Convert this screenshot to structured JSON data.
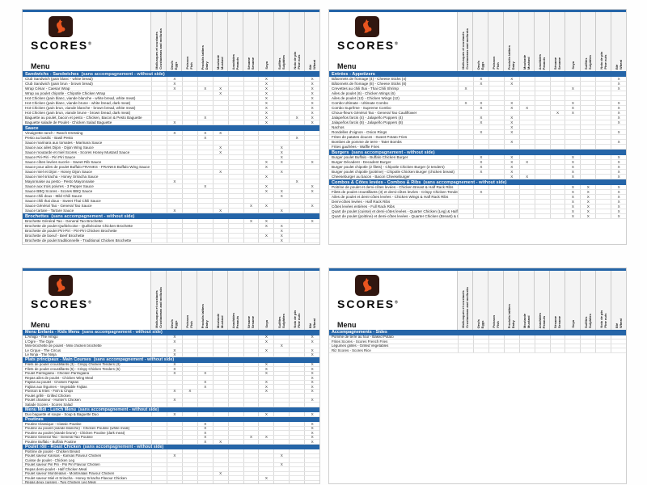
{
  "brand": {
    "name": "SCORES",
    "reg": "®",
    "menu_label": "Menu",
    "mark": "X"
  },
  "colors": {
    "section_bar": "#2565a8",
    "topline": "#2565a8",
    "logo_bg": "#311710",
    "rooster": "#e8541f"
  },
  "columns": [
    {
      "fr": "Mollusques et crustacés",
      "en": "Crustaceans and mollusks"
    },
    {
      "fr": "Oeufs",
      "en": "Eggs"
    },
    {
      "fr": "Poisson",
      "en": "Fish"
    },
    {
      "fr": "Produits laitiers",
      "en": "Dairy"
    },
    {
      "fr": "Moutarde",
      "en": "Mustard"
    },
    {
      "fr": "Arachides",
      "en": "Peanuts"
    },
    {
      "fr": "Sésame",
      "en": "Sesame"
    },
    {
      "fr": "Soya",
      "en": ""
    },
    {
      "fr": "Sulfites",
      "en": "Sulphites"
    },
    {
      "fr": "Noix de pin",
      "en": "Pine nuts"
    },
    {
      "fr": "Blé",
      "en": "Wheat"
    }
  ],
  "pages": [
    {
      "id": "top-left",
      "sections": [
        {
          "title": "Sandwichs - Sandwiches",
          "note": "(sans accompagnement - without side)",
          "rows": [
            {
              "name": "Club Sandwich (pain blanc - white bread)",
              "marks": [
                1,
                7,
                10
              ]
            },
            {
              "name": "Club Sandwich (pain brun - brown bread)",
              "marks": [
                1,
                7,
                10
              ]
            },
            {
              "name": "Wrap César - Caesar Wrap",
              "marks": [
                1,
                3,
                4,
                7,
                10
              ]
            },
            {
              "name": "Wrap au poulet chipotle - Chipotle Chicken Wrap",
              "marks": [
                4,
                7,
                10
              ]
            },
            {
              "name": "Hot Chicken (pain blanc, viande blanche - white bread, white meat)",
              "marks": [
                7,
                10
              ]
            },
            {
              "name": "Hot Chicken (pain blanc, viande brune - white bread, dark meat)",
              "marks": [
                7,
                10
              ]
            },
            {
              "name": "Hot Chicken (pain brun, viande blanche - brown bread, white meat)",
              "marks": [
                7,
                10
              ]
            },
            {
              "name": "Hot Chicken (pain brun, viande brune - brown bread, dark meat)",
              "marks": [
                7,
                10
              ]
            },
            {
              "name": "Baguette au poulet, bacon et pesto - Chicken, Bacon & Pesto Baguette",
              "marks": [
                3,
                7,
                9,
                10
              ]
            },
            {
              "name": "Baguette salade de Poulet - Chicken Salad Baguette",
              "marks": [
                1,
                7,
                10
              ]
            }
          ]
        },
        {
          "title": "Sauce",
          "note": "",
          "rows": [
            {
              "name": "Vinaigrette ranch - Ranch Dressing",
              "marks": [
                1,
                3,
                4
              ]
            },
            {
              "name": "Pesto au basilic - Basil Pesto",
              "marks": [
                3,
                9
              ]
            },
            {
              "name": "Sauce marinara aux tomates - Marinara Sauce",
              "marks": []
            },
            {
              "name": "Sauce aux ailes Dijon - Dijon Wing Sauce",
              "marks": [
                4,
                8
              ]
            },
            {
              "name": "Sauce moutarde et miel Scores - Scores Honey Mustard Sauce",
              "marks": [
                4,
                8
              ]
            },
            {
              "name": "Sauce Piri-Piri - Piri Piri Sauce",
              "marks": [
                8
              ]
            },
            {
              "name": "Sauce côtes levées sucrée - Sweet Rib Sauce",
              "marks": [
                7,
                8,
                10
              ]
            },
            {
              "name": "Sauce pour ailes de poulet Buffalo FRANKS - FRANKS Buffalo Wing Sauce",
              "marks": [
                7
              ]
            },
            {
              "name": "Sauce miel et Dijon - Honey Dijon Sauce",
              "marks": [
                4,
                8
              ]
            },
            {
              "name": "Sauce miel sriracha - Honey Sriracha Sauce",
              "marks": [
                7
              ]
            },
            {
              "name": "Mayonnaise au pesto - Pesto Mayonnaise",
              "marks": [
                1,
                9
              ]
            },
            {
              "name": "Sauce aux trois poivres - 3 Pepper Sauce",
              "marks": [
                3,
                7,
                10
              ]
            },
            {
              "name": "Sauce BBQ Scores - Scores BBQ Sauce",
              "marks": [
                7,
                8,
                10
              ]
            },
            {
              "name": "Sauce chili doux - Mild Chili Sauce",
              "marks": [
                8
              ]
            },
            {
              "name": "Sauce chili thai doux - Sweet Thai Chili Sauce",
              "marks": []
            },
            {
              "name": "Sauce Général Tao - General Tao Sauce",
              "marks": [
                6,
                7,
                10
              ]
            },
            {
              "name": "Sauce tartare - Tartare Sauce",
              "marks": [
                1,
                4,
                8
              ]
            }
          ]
        },
        {
          "title": "Brochettes",
          "note": "(sans accompagnement - without side)",
          "rows": [
            {
              "name": "Brochette Général Tao - General Tao Brochette",
              "marks": [
                6,
                7,
                10
              ]
            },
            {
              "name": "Brochette de poulet Québécoise - Québécoise Chicken Brochette",
              "marks": [
                7,
                8
              ]
            },
            {
              "name": "Brochette de poulet Piri-Piri - Piri-Piri Chicken Brochette",
              "marks": [
                8
              ]
            },
            {
              "name": "Brochette de boeuf - Beef Brochette",
              "marks": [
                7,
                8
              ]
            },
            {
              "name": "Brochette de poulet traditionnelle - Traditional Chicken Brochette",
              "marks": [
                8
              ]
            }
          ]
        }
      ]
    },
    {
      "id": "top-right",
      "sections": [
        {
          "title": "Entrées - Appetizers",
          "note": "",
          "rows": [
            {
              "name": "Bâtonnets de fromage (4) - Cheese Sticks (4)",
              "marks": [
                1,
                3,
                10
              ]
            },
            {
              "name": "Bâtonnets de fromage (8) - Cheese Sticks (8)",
              "marks": [
                1,
                3,
                10
              ]
            },
            {
              "name": "Crevettes au chili thai - Thai Chili Shrimp",
              "marks": [
                0,
                7,
                10
              ]
            },
            {
              "name": "Ailes de poulet (6) - Chicken Wings (6)",
              "marks": []
            },
            {
              "name": "Ailes de poulet (12) - Chicken Wings (12)",
              "marks": []
            },
            {
              "name": "Combo Ultimate - Ultimate Combo",
              "marks": [
                0,
                1,
                3,
                7,
                10
              ]
            },
            {
              "name": "Combo Suprême - Supreme Combo",
              "marks": [
                1,
                3,
                4,
                7,
                10
              ]
            },
            {
              "name": "Choux-fleurs Général Tao - General Tao Cauliflower",
              "marks": [
                6,
                7,
                10
              ]
            },
            {
              "name": "Jalapeños farcis (4) - Jalapeño Poppers (4)",
              "marks": [
                1,
                3,
                10
              ]
            },
            {
              "name": "Jalapeños farcis (8) - Jalapeño Poppers (8)",
              "marks": [
                1,
                3,
                10
              ]
            },
            {
              "name": "Nachos",
              "marks": [
                3
              ]
            },
            {
              "name": "Rondelles d'oignon - Onion Rings",
              "marks": [
                1,
                3,
                10
              ]
            },
            {
              "name": "Frites de patates douces - Sweet Potato Fries",
              "marks": []
            },
            {
              "name": "Bombes de pomme de terre - Tater Bombs",
              "marks": [
                3,
                10
              ]
            },
            {
              "name": "Frites gaufrées - Waffle Fries",
              "marks": []
            }
          ]
        },
        {
          "title": "Burgers",
          "note": "(sans accompagnement - without side)",
          "rows": [
            {
              "name": "Burger poulet Buffalo - Buffalo Chicken Burger",
              "marks": [
                1,
                3,
                7,
                10
              ]
            },
            {
              "name": "Burger Décadent - Decadent Burger",
              "marks": [
                1,
                3,
                4,
                7,
                10
              ]
            },
            {
              "name": "Burger poulet chipotle (2 filets) - Chipotle Chicken Burger (2 tenders)",
              "marks": [
                1,
                3,
                7,
                10
              ]
            },
            {
              "name": "Burger poulet chipotle (poitrine) - Chipotle Chicken Burger (chicken breast)",
              "marks": [
                1,
                3,
                7,
                10
              ]
            },
            {
              "name": "Cheeseburger au bacon - Bacon Cheeseburger",
              "marks": [
                3,
                4,
                7,
                10
              ]
            }
          ]
        },
        {
          "title": "Combos & Côtes levées - Combos & Ribs",
          "note": "(sans accompagnement - without side)",
          "rows": [
            {
              "name": "Poitrine de poulet et demi-côtes levées - Chicken Breast & Half Rack Ribs",
              "marks": [
                7,
                8,
                10
              ]
            },
            {
              "name": "Filets de poulet croustillants (3) et demi-côtes levées - Crispy Chicken Tenders (3) & Half Rack Ribs",
              "marks": [
                1,
                7,
                8,
                10
              ]
            },
            {
              "name": "Ailes de poulet et demi-côtes levées - Chicken Wings & Half Rack Ribs",
              "marks": [
                7,
                8,
                10
              ]
            },
            {
              "name": "Demi-côtes levées - Half Rack Ribs",
              "marks": [
                7,
                8,
                10
              ]
            },
            {
              "name": "Côtes levées entières - Full Rack Ribs",
              "marks": [
                7,
                8,
                10
              ]
            },
            {
              "name": "Quart de poulet (cuisse) et demi-côtes levées - Quarter Chicken (Leg) & Half Rack Ribs",
              "marks": [
                7,
                8,
                10
              ]
            },
            {
              "name": "Quart de poulet (poitrine) et demi-côtes levées - Quarter Chicken (Breast) & Half Rack Ribs",
              "marks": [
                7,
                8,
                10
              ]
            }
          ]
        }
      ]
    },
    {
      "id": "bottom-left",
      "sections": [
        {
          "title": "Menu Enfants - Kids Menu",
          "note": "(sans accompagnement - without side)",
          "rows": [
            {
              "name": "L'Amigo - The Amigo",
              "marks": [
                1,
                7,
                10
              ]
            },
            {
              "name": "L'Ogre - The Ogre",
              "marks": [
                1,
                7,
                10
              ]
            },
            {
              "name": "Mini-brochette de poulet - Mini chicken brochette",
              "marks": [
                8
              ]
            },
            {
              "name": "Le Cirque - The Circus",
              "marks": [
                1,
                7,
                10
              ]
            },
            {
              "name": "Le Ninja - The Ninja",
              "marks": [
                1,
                10
              ]
            }
          ]
        },
        {
          "title": "Plats principaux - Main Courses",
          "note": "(sans accompagnement - without side)",
          "rows": [
            {
              "name": "Filets de poulet croustillants (3) - Crispy Chicken Tenders (3)",
              "marks": [
                1,
                7,
                10
              ]
            },
            {
              "name": "Filets de poulet croustillants (5) - Crispy Chicken Tenders (5)",
              "marks": [
                1,
                7,
                10
              ]
            },
            {
              "name": "Poulet Parmigiana - Chicken Parmigiana",
              "marks": [
                1,
                3,
                7,
                10
              ]
            },
            {
              "name": "Repas ailes de poulet - Chicken Wing Meal",
              "marks": [
                10
              ]
            },
            {
              "name": "Fajitas au poulet - Chicken Fajitas",
              "marks": [
                3,
                7,
                10
              ]
            },
            {
              "name": "Fajitas aux légumes - Vegetable Fajitas",
              "marks": [
                3,
                7,
                10
              ]
            },
            {
              "name": "Poisson & frites - Fish & Chips",
              "marks": [
                1,
                2,
                7,
                10
              ]
            },
            {
              "name": "Poulet grillé - Grilled Chicken",
              "marks": []
            },
            {
              "name": "Poulet chasseur - Hunter's Chicken",
              "marks": [
                1,
                10
              ]
            },
            {
              "name": "Salade Scores - Scores Salad",
              "marks": []
            }
          ]
        },
        {
          "title": "Menu Midi - Lunch Menu",
          "note": "(sans accompagnement - without side)",
          "rows": [
            {
              "name": "Duo baguette et soupe - Soup & Baguette Duo",
              "marks": [
                1,
                7,
                10
              ]
            }
          ]
        },
        {
          "title": "Poutines",
          "note": "",
          "rows": [
            {
              "name": "Poutine Classique - Classic Poutine",
              "marks": [
                3,
                10
              ]
            },
            {
              "name": "Poutine au poulet (viande blanche) - Chicken Poutine (white meat)",
              "marks": [
                3,
                10
              ]
            },
            {
              "name": "Poutine au poulet (viande brune) - Chicken Poutine (dark meat)",
              "marks": [
                3,
                10
              ]
            },
            {
              "name": "Poutine Général Tao - General Tao Poutine",
              "marks": [
                3,
                6,
                7,
                10
              ]
            },
            {
              "name": "Poutine Buffalo - Buffalo Poutine",
              "marks": [
                3,
                4,
                10
              ]
            }
          ]
        },
        {
          "title": "Poulet rôti - Roast Chicken",
          "note": "(sans accompagnement - without side)",
          "rows": [
            {
              "name": "Poitrine de poulet - Chicken Breast",
              "marks": []
            },
            {
              "name": "Poulet saveur Kansas - Kansas Flavour Chicken",
              "marks": [
                1,
                8
              ]
            },
            {
              "name": "Cuisse de poulet - Chicken Leg",
              "marks": []
            },
            {
              "name": "Poulet saveur Piri Piri - Piri Piri Flavour Chicken",
              "marks": [
                8
              ]
            },
            {
              "name": "Repas demi-poulet - Half Chicken Meal",
              "marks": []
            },
            {
              "name": "Poulet saveur Montréalais - Montréalais Flavour Chicken",
              "marks": [
                4
              ]
            },
            {
              "name": "Poulet saveur Miel et Sriracha - Honey Sriracha Flavour Chicken",
              "marks": [
                7
              ]
            },
            {
              "name": "Repas deux cuisses - Two Chicken Leg Meal",
              "marks": []
            }
          ]
        }
      ]
    },
    {
      "id": "bottom-right",
      "sections": [
        {
          "title": "Accompagnements - Sides",
          "note": "",
          "rows": [
            {
              "name": "Pomme de terre au four - Baked Potato",
              "marks": []
            },
            {
              "name": "Frites Scores - Scores French Fries",
              "marks": []
            },
            {
              "name": "Légumes grillés - Grilled Vegetables",
              "marks": []
            },
            {
              "name": "Riz Scores - Scores Rice",
              "marks": []
            }
          ]
        }
      ]
    }
  ]
}
